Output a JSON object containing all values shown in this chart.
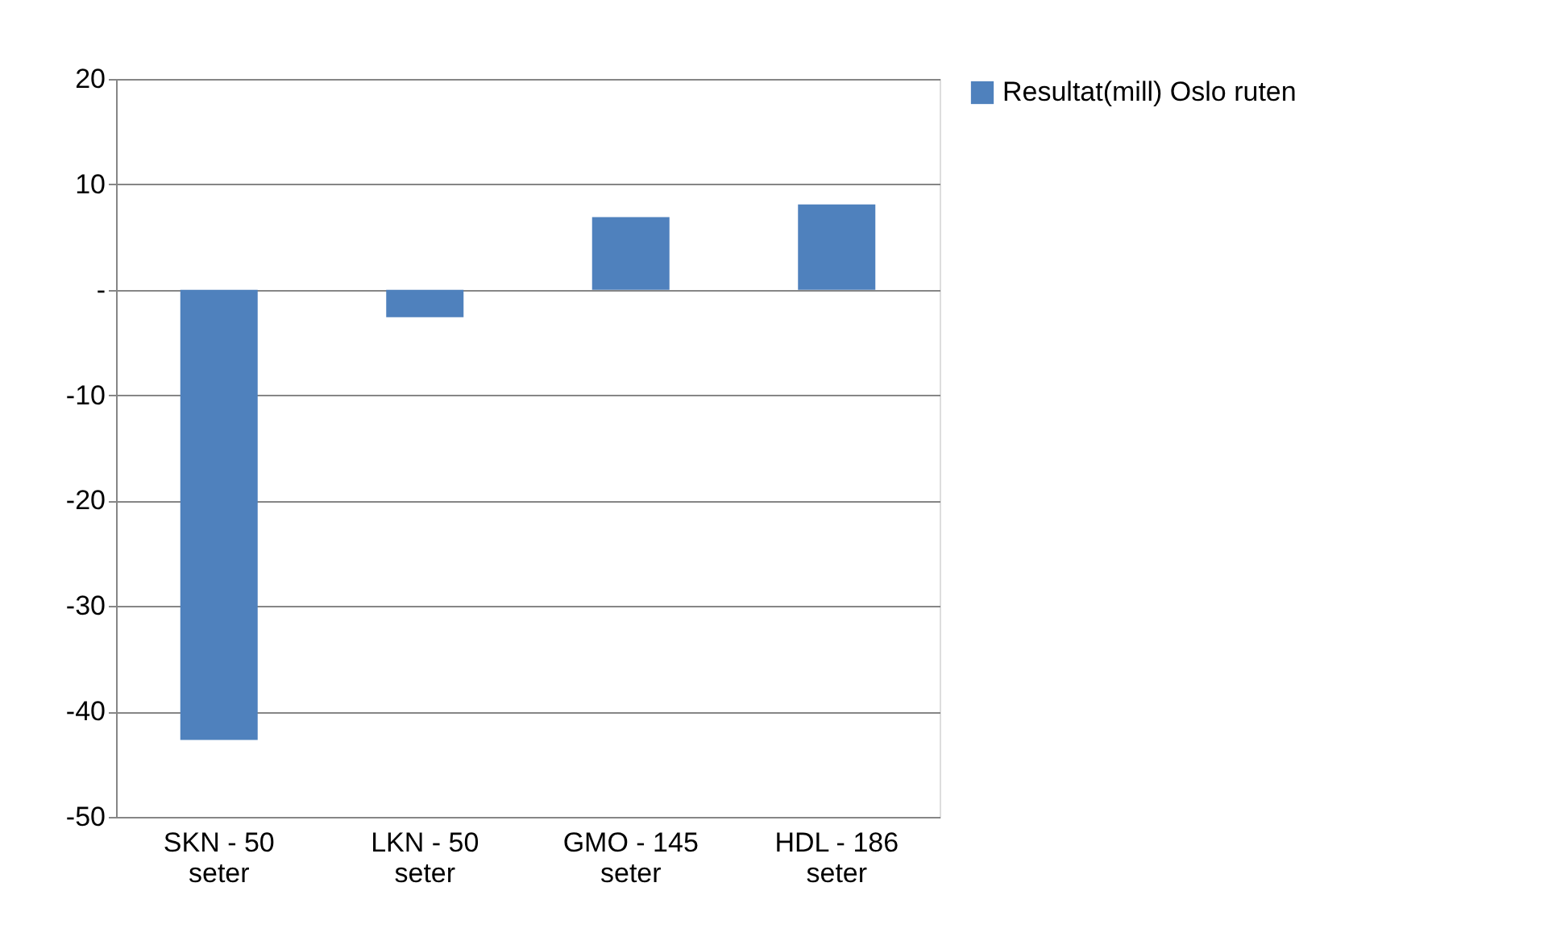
{
  "chart_data": {
    "type": "bar",
    "categories": [
      "SKN - 50 seter",
      "LKN - 50 seter",
      "GMO - 145 seter",
      "HDL - 186 seter"
    ],
    "series": [
      {
        "name": "Resultat(mill) Oslo ruten",
        "color": "#4f81bd",
        "values": [
          -42.7,
          -2.6,
          6.9,
          8.1
        ]
      }
    ],
    "ylim": [
      -50,
      20
    ],
    "yticks": [
      -50,
      -40,
      -30,
      -20,
      -10,
      {
        "value": 0,
        "label": "-"
      },
      10,
      20
    ],
    "grid": "y",
    "legend": "right"
  }
}
